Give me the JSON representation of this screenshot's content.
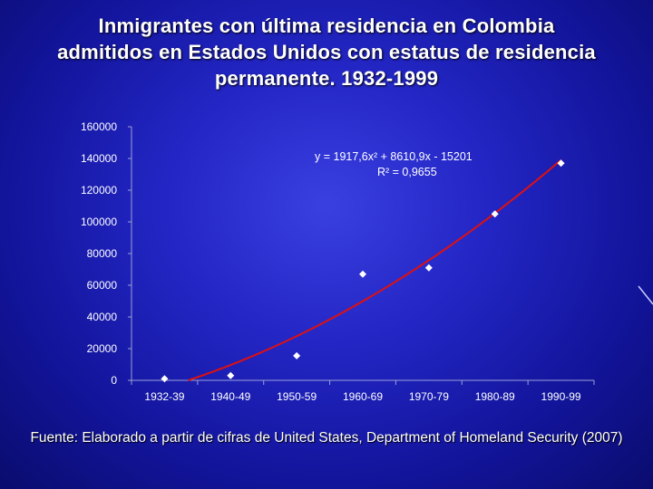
{
  "slide": {
    "title": "Inmigrantes con última residencia en Colombia admitidos en Estados Unidos con estatus de residencia permanente. 1932-1999",
    "source": "Fuente: Elaborado a partir de cifras de United States, Department of Homeland Security (2007)"
  },
  "colors": {
    "background": "#2326c4",
    "trendline": "#e01010",
    "points": "#ffffff",
    "axis": "#9aa0d8"
  },
  "chart_data": {
    "type": "scatter",
    "title": "",
    "xlabel": "",
    "ylabel": "",
    "categories": [
      "1932-39",
      "1940-49",
      "1950-59",
      "1960-69",
      "1970-79",
      "1980-89",
      "1990-99"
    ],
    "x": [
      1,
      2,
      3,
      4,
      5,
      6,
      7
    ],
    "values": [
      1000,
      3000,
      15500,
      67000,
      71000,
      105000,
      137000
    ],
    "ylim": [
      0,
      160000
    ],
    "yticks": [
      "160000",
      "140000",
      "120000",
      "100000",
      "80000",
      "60000",
      "40000",
      "20000",
      "0"
    ],
    "yticks_values": [
      160000,
      140000,
      120000,
      100000,
      80000,
      60000,
      40000,
      20000,
      0
    ],
    "grid": false,
    "trendline": {
      "type": "polynomial",
      "a": 1917.6,
      "b": 8610.9,
      "c": -15201,
      "equation": "y = 1917,6x² + 8610,9x - 15201",
      "r_squared": "R² = 0,9655"
    }
  }
}
